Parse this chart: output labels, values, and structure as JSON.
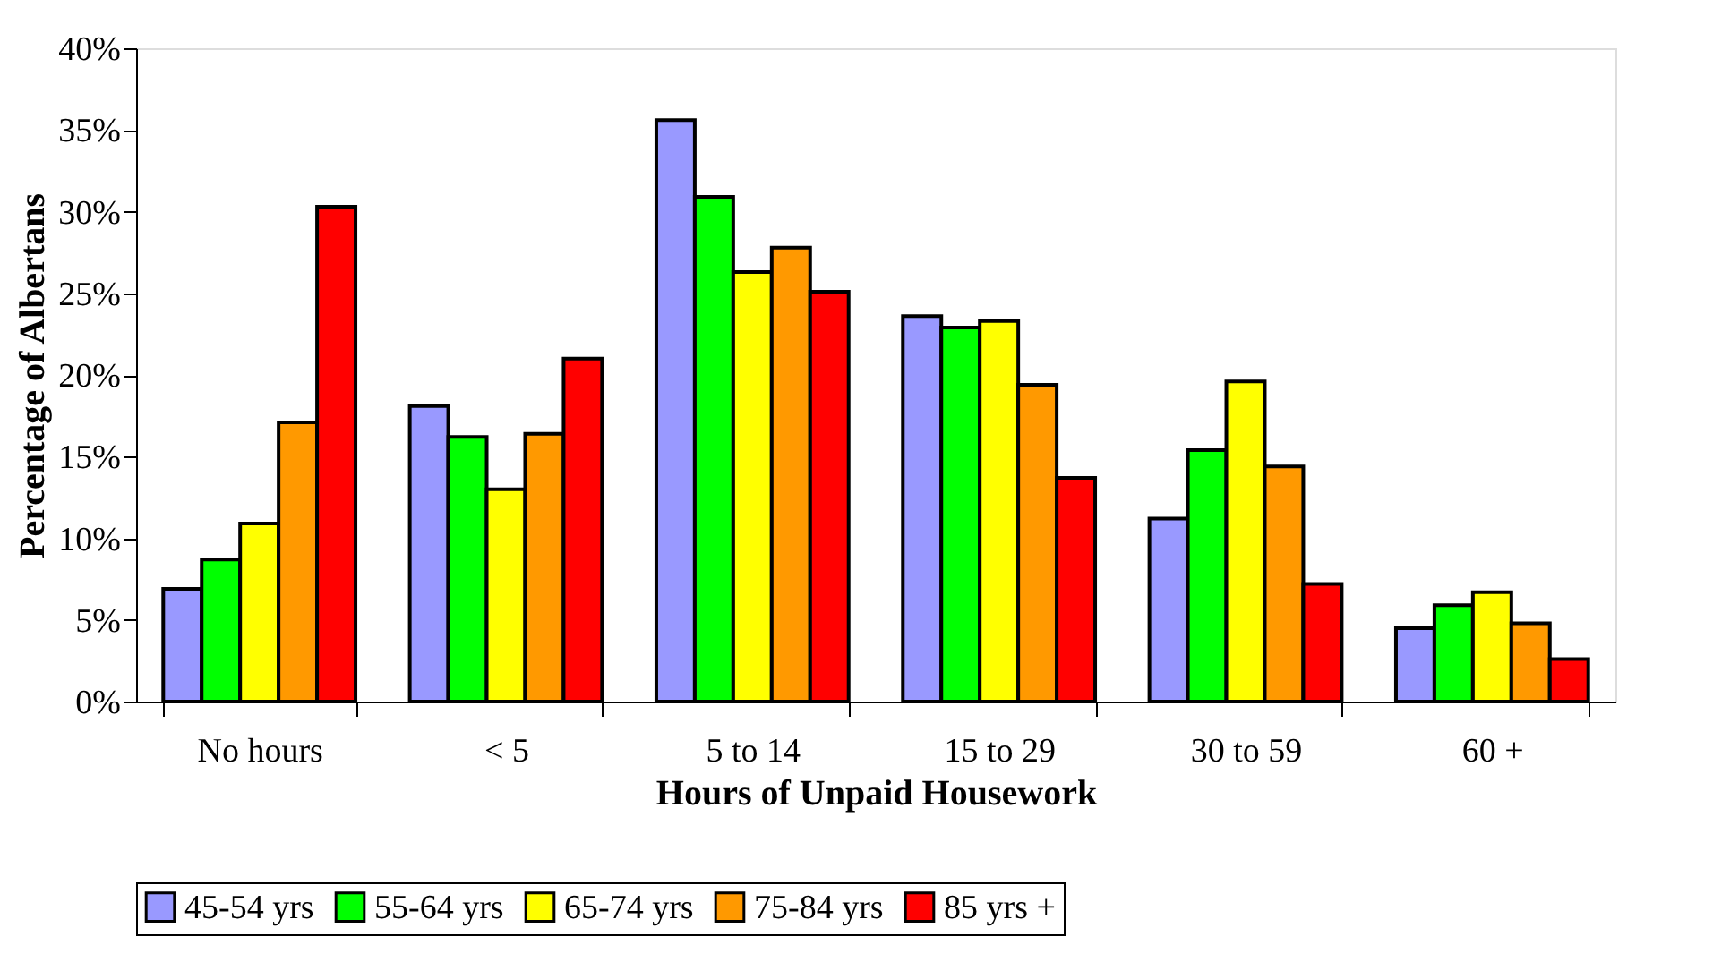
{
  "chart_data": {
    "type": "bar",
    "xlabel": "Hours of Unpaid Housework",
    "ylabel": "Percentage of Albertans",
    "categories": [
      "No hours",
      "< 5",
      "5 to 14",
      "15 to 29",
      "30 to 59",
      "60 +"
    ],
    "series": [
      {
        "name": "45-54 yrs",
        "color": "#9999ff",
        "values": [
          6.9,
          18.1,
          35.6,
          23.6,
          11.2,
          4.5
        ]
      },
      {
        "name": "55-64 yrs",
        "color": "#00ff00",
        "values": [
          8.7,
          16.2,
          30.9,
          22.9,
          15.4,
          5.9
        ]
      },
      {
        "name": "65-74 yrs",
        "color": "#ffff00",
        "values": [
          10.9,
          13.0,
          26.3,
          23.3,
          19.6,
          6.7
        ]
      },
      {
        "name": "75-84 yrs",
        "color": "#ff9900",
        "values": [
          17.1,
          16.4,
          27.8,
          19.4,
          14.4,
          4.8
        ]
      },
      {
        "name": "85 yrs +",
        "color": "#ff0000",
        "values": [
          30.3,
          21.0,
          25.1,
          13.7,
          7.2,
          2.6
        ]
      }
    ],
    "ylim": [
      0,
      40
    ],
    "yticks": [
      {
        "value": 0,
        "label": "0%"
      },
      {
        "value": 5,
        "label": "5%"
      },
      {
        "value": 10,
        "label": "10%"
      },
      {
        "value": 15,
        "label": "15%"
      },
      {
        "value": 20,
        "label": "20%"
      },
      {
        "value": 25,
        "label": "25%"
      },
      {
        "value": 30,
        "label": "30%"
      },
      {
        "value": 35,
        "label": "35%"
      },
      {
        "value": 40,
        "label": "40%"
      }
    ],
    "grid": false,
    "legend": "bottom"
  }
}
